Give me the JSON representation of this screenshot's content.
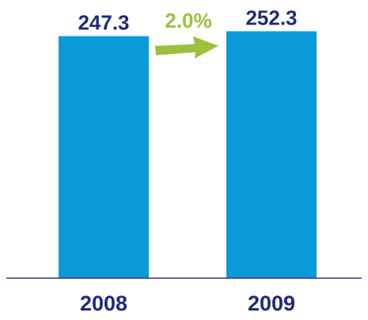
{
  "chart_data": {
    "type": "bar",
    "title": "",
    "xlabel": "",
    "ylabel": "",
    "categories": [
      "2008",
      "2009"
    ],
    "values": [
      247.3,
      252.3
    ],
    "value_labels": [
      "247.3",
      "252.3"
    ],
    "annotation": {
      "text": "2.0%",
      "type": "arrow",
      "from_category": "2008",
      "to_category": "2009"
    },
    "ylim": [
      0,
      260
    ],
    "grid": false,
    "legend": "none",
    "colors": {
      "bar": "#0A9AD8",
      "value_label": "#1F2A7A",
      "category_label": "#1F2A7A",
      "annotation": "#9CC13A",
      "axis": "#2A3580"
    }
  }
}
